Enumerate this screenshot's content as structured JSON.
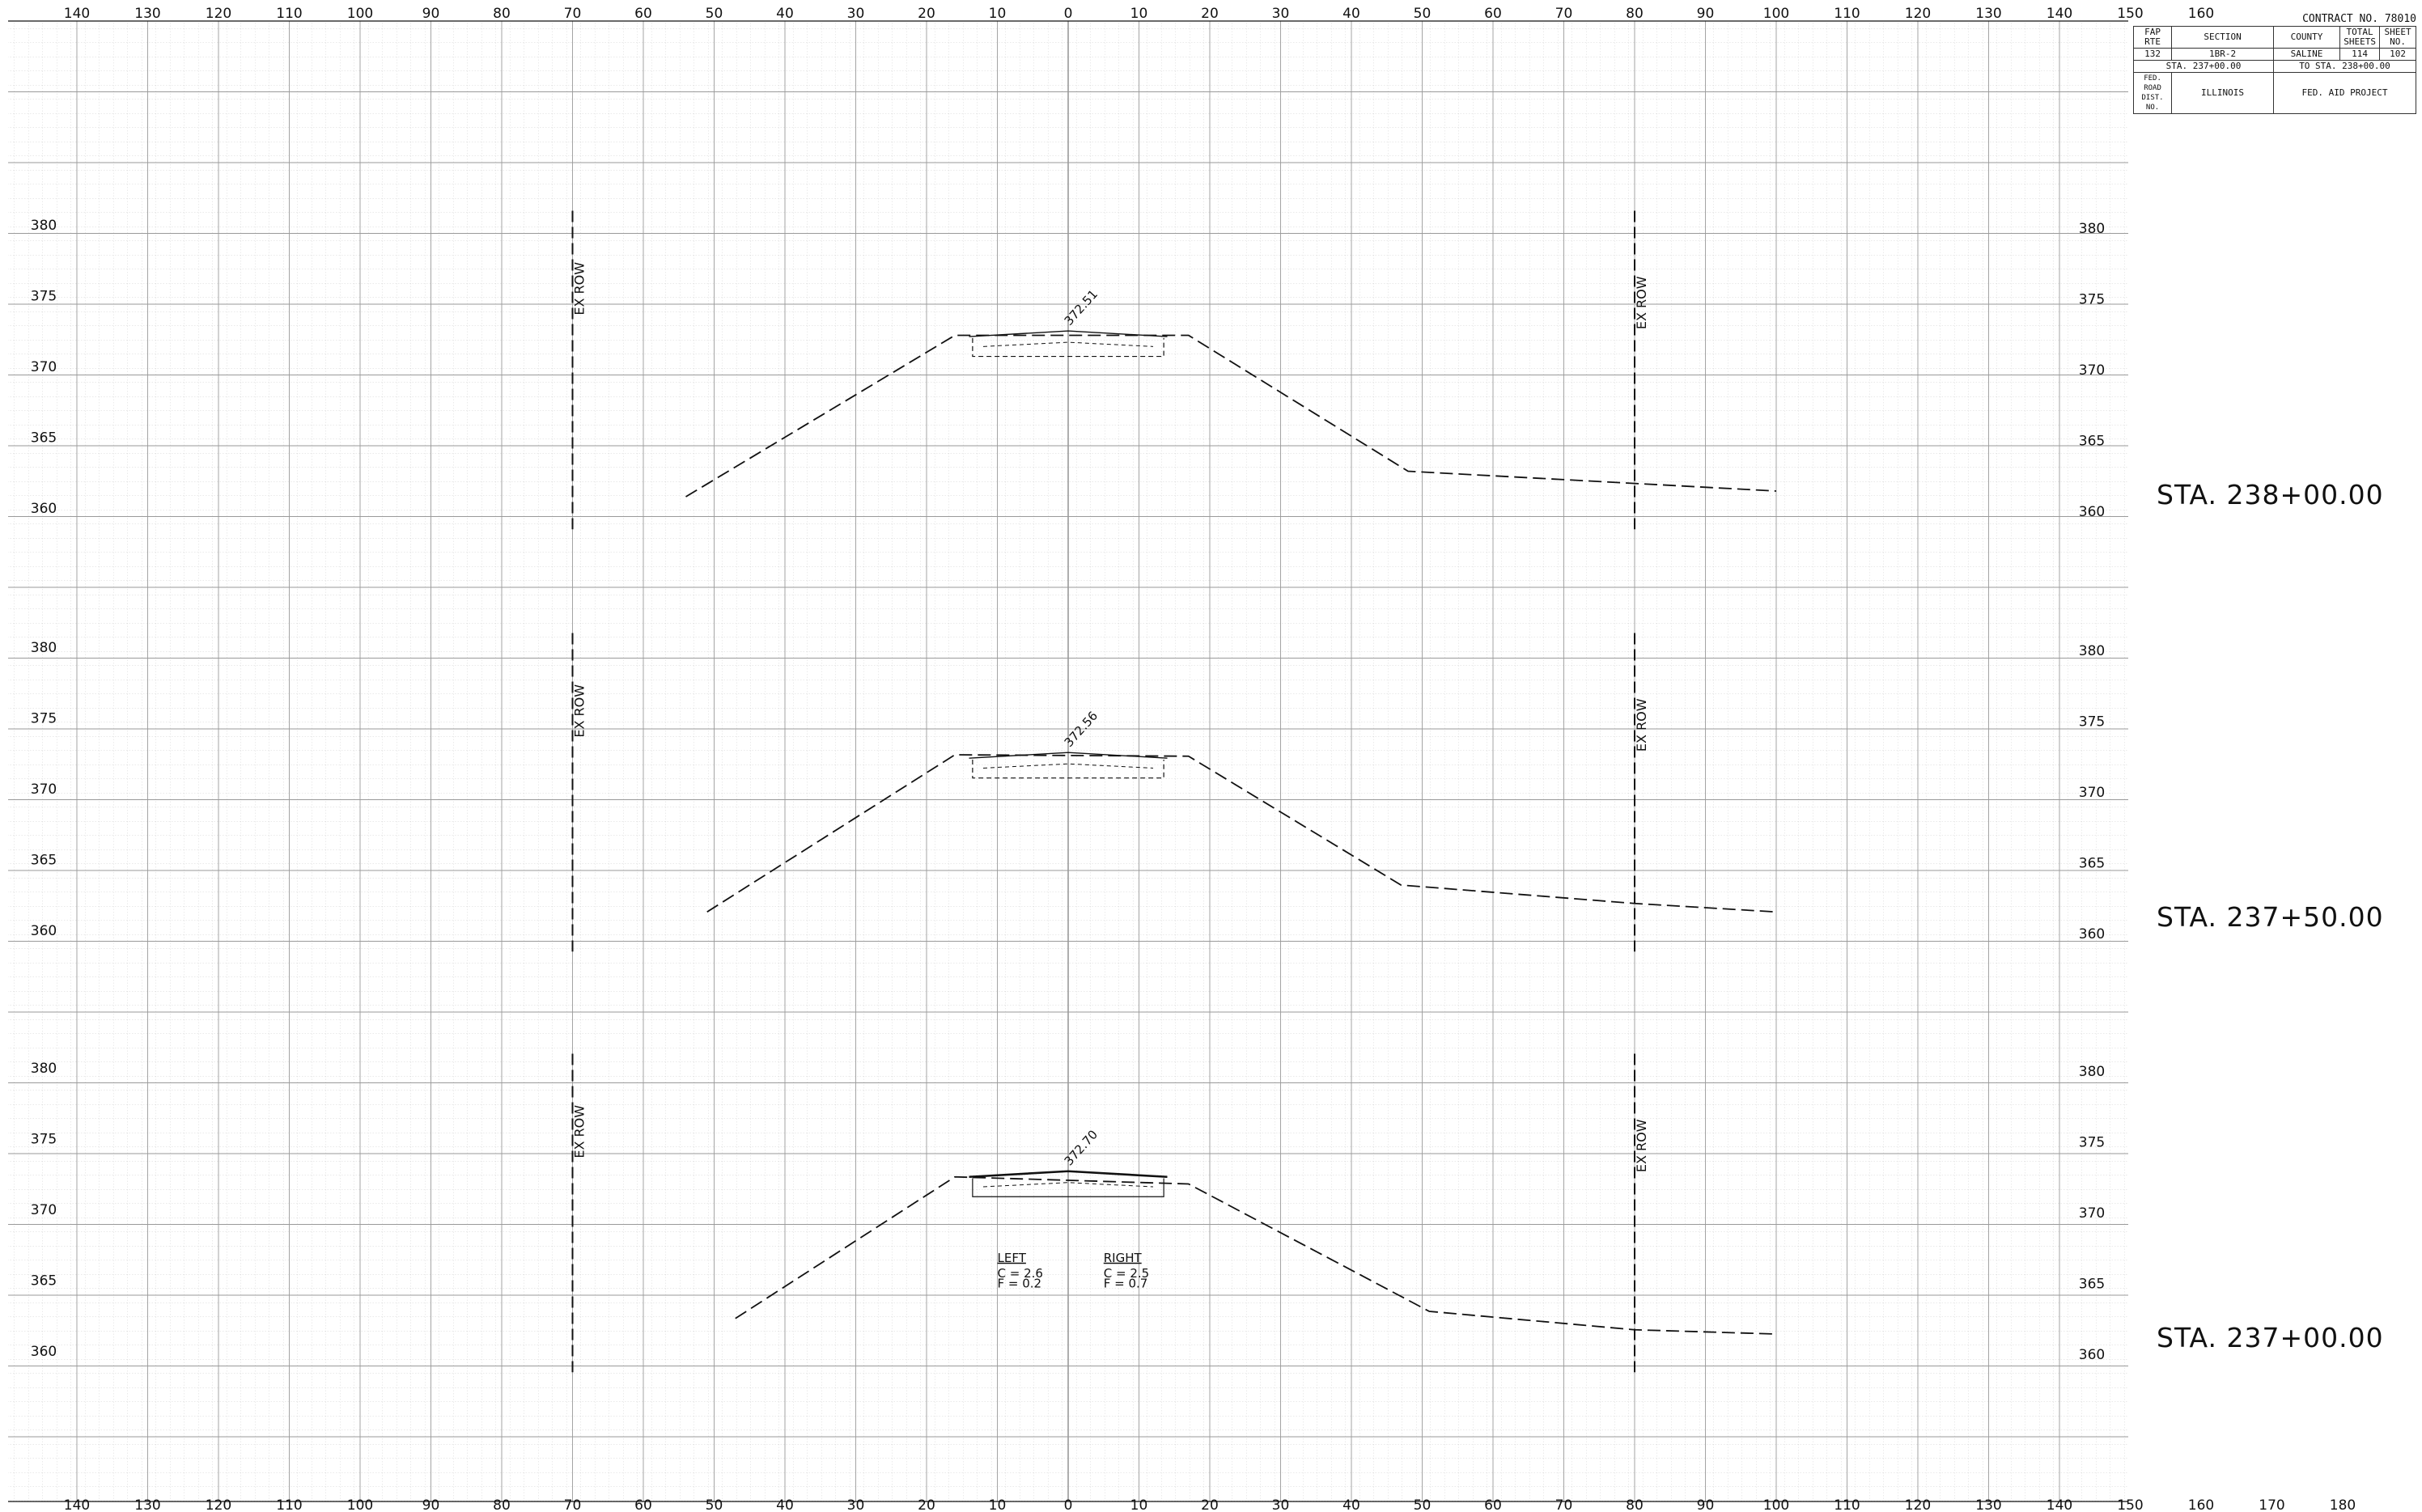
{
  "top_axis_labels": [
    "140",
    "130",
    "120",
    "110",
    "100",
    "90",
    "80",
    "70",
    "60",
    "50",
    "40",
    "30",
    "20",
    "10",
    "0",
    "10",
    "20",
    "30",
    "40",
    "50",
    "60",
    "70",
    "80",
    "90",
    "100",
    "110",
    "120",
    "130",
    "140",
    "150",
    "160"
  ],
  "bottom_axis_labels": [
    "140",
    "130",
    "120",
    "110",
    "100",
    "90",
    "80",
    "70",
    "60",
    "50",
    "40",
    "30",
    "20",
    "10",
    "0",
    "10",
    "20",
    "30",
    "40",
    "50",
    "60",
    "70",
    "80",
    "90",
    "100",
    "110",
    "120",
    "130",
    "140",
    "150",
    "160",
    "170",
    "180"
  ],
  "elevation_labels": [
    "380",
    "375",
    "370",
    "365",
    "360"
  ],
  "row_label": "EX ROW",
  "title_block": {
    "contract": "CONTRACT NO. 78010",
    "headers": {
      "rte": "FAP RTE",
      "section": "SECTION",
      "county": "COUNTY",
      "total": "TOTAL SHEETS",
      "sheet": "SHEET NO."
    },
    "values": {
      "rte": "132",
      "section": "1BR-2",
      "county": "SALINE",
      "total": "114",
      "sheet": "102"
    },
    "sta_from": "STA. 237+00.00",
    "sta_to": "TO STA. 238+00.00",
    "road_dist": "FED. ROAD DIST. NO.",
    "state": "ILLINOIS",
    "project": "FED. AID PROJECT"
  },
  "sections": [
    {
      "station": "STA. 238+00.00",
      "crown": "372.51"
    },
    {
      "station": "STA. 237+50.00",
      "crown": "372.56"
    },
    {
      "station": "STA. 237+00.00",
      "crown": "372.70",
      "areas": {
        "left": "LEFT",
        "left_c": "C = 2.6",
        "left_f": "F = 0.2",
        "right": "RIGHT",
        "right_c": "C = 2.5",
        "right_f": "F = 0.7"
      }
    }
  ],
  "colors": {
    "ink": "#111111",
    "grid": "#9a9a9a",
    "paper": "#ffffff"
  }
}
